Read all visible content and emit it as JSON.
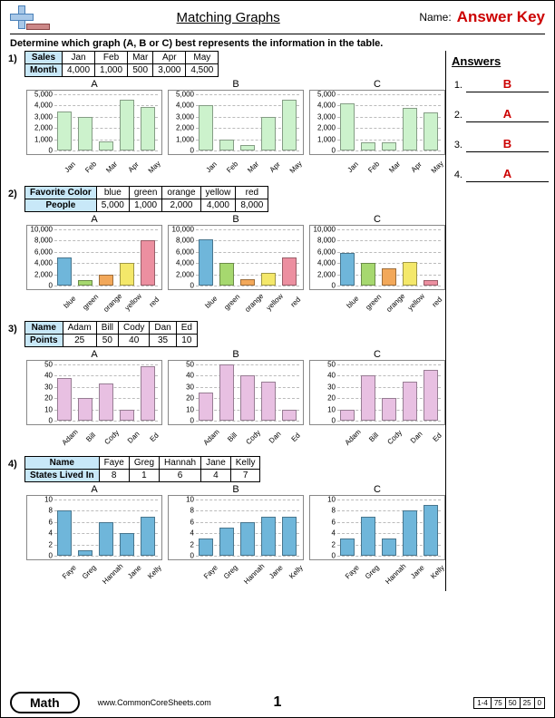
{
  "header": {
    "title": "Matching Graphs",
    "nameLabel": "Name:",
    "answerKey": "Answer Key"
  },
  "instruction": "Determine which graph (A, B or C) best represents the information in the table.",
  "answersTitle": "Answers",
  "answers": [
    {
      "n": "1.",
      "v": "B"
    },
    {
      "n": "2.",
      "v": "A"
    },
    {
      "n": "3.",
      "v": "B"
    },
    {
      "n": "4.",
      "v": "A"
    }
  ],
  "footer": {
    "math": "Math",
    "url": "www.CommonCoreSheets.com",
    "page": "1",
    "range": "1-4",
    "scores": [
      "75",
      "50",
      "25",
      "0"
    ]
  },
  "palette": {
    "p1": "#ccf2cc",
    "p2": [
      "#6fb6da",
      "#a6d86f",
      "#f2a85a",
      "#f4e86a",
      "#ec8fa0"
    ],
    "p3": "#e8c0e2",
    "p4": "#6fb6da",
    "border": "#4a774a"
  },
  "problems": [
    {
      "num": "1)",
      "head": [
        "Sales",
        "Month"
      ],
      "cols": [
        "Jan",
        "Feb",
        "Mar",
        "Apr",
        "May"
      ],
      "vals": [
        "4,000",
        "1,000",
        "500",
        "3,000",
        "4,500"
      ],
      "ymax": 5000,
      "yticks": [
        0,
        1000,
        2000,
        3000,
        4000,
        5000
      ],
      "ylabels": [
        "0",
        "1,000",
        "2,000",
        "3,000",
        "4,000",
        "5,000"
      ],
      "charts": [
        {
          "t": "A",
          "d": [
            3500,
            3000,
            800,
            4500,
            3900
          ]
        },
        {
          "t": "B",
          "d": [
            4000,
            1000,
            500,
            3000,
            4500
          ]
        },
        {
          "t": "C",
          "d": [
            4200,
            700,
            700,
            3800,
            3400
          ]
        }
      ],
      "fill": "p1"
    },
    {
      "num": "2)",
      "head": [
        "Favorite Color",
        "People"
      ],
      "cols": [
        "blue",
        "green",
        "orange",
        "yellow",
        "red"
      ],
      "vals": [
        "5,000",
        "1,000",
        "2,000",
        "4,000",
        "8,000"
      ],
      "ymax": 10000,
      "yticks": [
        0,
        2000,
        4000,
        6000,
        8000,
        10000
      ],
      "ylabels": [
        "0",
        "2,000",
        "4,000",
        "6,000",
        "8,000",
        "10,000"
      ],
      "charts": [
        {
          "t": "A",
          "d": [
            5000,
            1000,
            2000,
            4000,
            8000
          ]
        },
        {
          "t": "B",
          "d": [
            8200,
            4000,
            1200,
            2200,
            5000
          ]
        },
        {
          "t": "C",
          "d": [
            5800,
            4000,
            3000,
            4200,
            1000
          ]
        }
      ],
      "fill": "p2"
    },
    {
      "num": "3)",
      "head": [
        "Name",
        "Points"
      ],
      "cols": [
        "Adam",
        "Bill",
        "Cody",
        "Dan",
        "Ed"
      ],
      "vals": [
        "25",
        "50",
        "40",
        "35",
        "10"
      ],
      "ymax": 50,
      "yticks": [
        0,
        10,
        20,
        30,
        40,
        50
      ],
      "ylabels": [
        "0",
        "10",
        "20",
        "30",
        "40",
        "50"
      ],
      "charts": [
        {
          "t": "A",
          "d": [
            38,
            20,
            33,
            10,
            48
          ]
        },
        {
          "t": "B",
          "d": [
            25,
            50,
            40,
            35,
            10
          ]
        },
        {
          "t": "C",
          "d": [
            10,
            40,
            20,
            35,
            45
          ]
        }
      ],
      "fill": "p3"
    },
    {
      "num": "4)",
      "head": [
        "Name",
        "States Lived In"
      ],
      "cols": [
        "Faye",
        "Greg",
        "Hannah",
        "Jane",
        "Kelly"
      ],
      "vals": [
        "8",
        "1",
        "6",
        "4",
        "7"
      ],
      "ymax": 10,
      "yticks": [
        0,
        2,
        4,
        6,
        8,
        10
      ],
      "ylabels": [
        "0",
        "2",
        "4",
        "6",
        "8",
        "10"
      ],
      "charts": [
        {
          "t": "A",
          "d": [
            8,
            1,
            6,
            4,
            7
          ]
        },
        {
          "t": "B",
          "d": [
            3,
            5,
            6,
            7,
            7
          ]
        },
        {
          "t": "C",
          "d": [
            3,
            7,
            3,
            8,
            9
          ]
        }
      ],
      "fill": "p4"
    }
  ]
}
